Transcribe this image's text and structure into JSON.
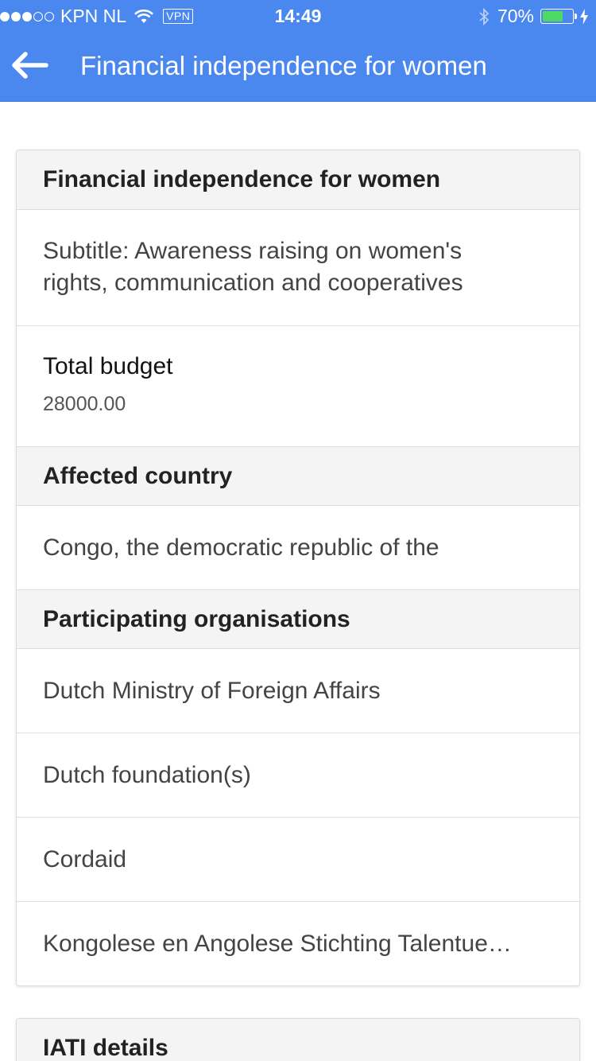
{
  "status_bar": {
    "carrier": "KPN NL",
    "vpn": "VPN",
    "time": "14:49",
    "battery_percent": "70%",
    "battery_level": 0.7,
    "signal_bars": 3,
    "signal_total": 5
  },
  "nav": {
    "back_icon": "arrow-left-icon",
    "title": "Financial independence for women"
  },
  "project": {
    "title": "Financial independence for women",
    "subtitle": "Subtitle: Awareness raising on women's rights, communication and cooperatives",
    "budget_label": "Total budget",
    "budget_value": "28000.00",
    "country_header": "Affected country",
    "country": "Congo, the democratic republic of the",
    "orgs_header": "Participating organisations",
    "organisations": [
      "Dutch Ministry of Foreign Affairs",
      "Dutch foundation(s)",
      "Cordaid",
      "Kongolese en Angolese Stichting Talentue…"
    ]
  },
  "iati": {
    "header": "IATI details"
  },
  "colors": {
    "accent": "#4a87ee",
    "battery": "#4cd964"
  }
}
